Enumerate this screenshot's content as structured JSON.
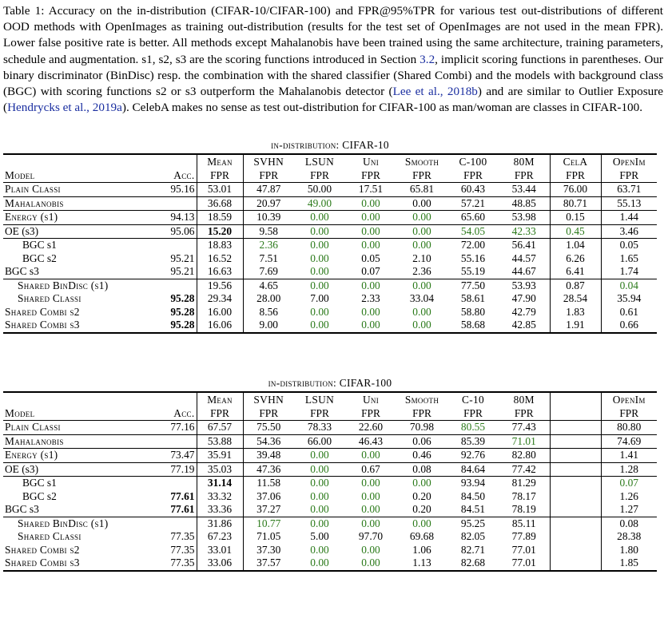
{
  "caption": {
    "part1": "Table 1: Accuracy on the in-distribution (CIFAR-10/CIFAR-100) and FPR@95%TPR for various test out-distributions of different OOD methods with OpenImages as training out-distribution (results for the test set of OpenImages are not used in the mean FPR). Lower false positive rate is better. All methods except Mahalanobis have been trained using the same architecture, training parameters, schedule and augmentation. s1, s2, s3 are the scoring functions introduced in Section ",
    "ref1": "3.2",
    "part2": ", implicit scoring functions in parentheses. Our binary discriminator (BinDisc) resp. the combination with the shared classifier (Shared Combi) and the models with background class (BGC) with scoring functions s2 or s3 outperform the Mahalanobis detector (",
    "ref2": "Lee et al., 2018b",
    "part3": ") and are similar to Outlier Exposure (",
    "ref3": "Hendrycks et al., 2019a",
    "part4": "). CelebA makes no sense as test out-distribution for CIFAR-100 as man/woman are classes in CIFAR-100."
  },
  "tables": [
    {
      "title": "in-distribution: CIFAR-10",
      "header_top": [
        "",
        "",
        "Mean",
        "SVHN",
        "LSUN",
        "Uni",
        "Smooth",
        "C-100",
        "80M",
        "CelA",
        "OpenIm"
      ],
      "header_bot": [
        "Model",
        "Acc.",
        "FPR",
        "FPR",
        "FPR",
        "FPR",
        "FPR",
        "FPR",
        "FPR",
        "FPR",
        "FPR"
      ],
      "rows": [
        [
          "Plain Classi",
          "95.16",
          "53.01",
          "47.87",
          "50.00",
          "17.51",
          "65.81",
          "60.43",
          "53.44",
          "76.00",
          "63.71"
        ],
        [
          "Mahalanobis",
          "",
          "36.68",
          "20.97",
          "49.00",
          "0.00",
          "0.00",
          "57.21",
          "48.85",
          "80.71",
          "55.13"
        ],
        [
          "Energy (s1)",
          "94.13",
          "18.59",
          "10.39",
          "0.00",
          "0.00",
          "0.00",
          "65.60",
          "53.98",
          "0.15",
          "1.44"
        ],
        [
          "OE (s3)",
          "95.06",
          "15.20",
          "9.58",
          "0.00",
          "0.00",
          "0.00",
          "54.05",
          "42.33",
          "0.45",
          "3.46"
        ],
        [
          "BGC s1",
          "",
          "18.83",
          "2.36",
          "0.00",
          "0.00",
          "0.00",
          "72.00",
          "56.41",
          "1.04",
          "0.05"
        ],
        [
          "BGC s2",
          "95.21",
          "16.52",
          "7.51",
          "0.00",
          "0.05",
          "2.10",
          "55.16",
          "44.57",
          "6.26",
          "1.65"
        ],
        [
          "BGC s3",
          "95.21",
          "16.63",
          "7.69",
          "0.00",
          "0.07",
          "2.36",
          "55.19",
          "44.67",
          "6.41",
          "1.74"
        ],
        [
          "Shared BinDisc (s1)",
          "",
          "19.56",
          "4.65",
          "0.00",
          "0.00",
          "0.00",
          "77.50",
          "53.93",
          "0.87",
          "0.04"
        ],
        [
          "Shared Classi",
          "95.28",
          "29.34",
          "28.00",
          "7.00",
          "2.33",
          "33.04",
          "58.61",
          "47.90",
          "28.54",
          "35.94"
        ],
        [
          "Shared Combi s2",
          "95.28",
          "16.00",
          "8.56",
          "0.00",
          "0.00",
          "0.00",
          "58.80",
          "42.79",
          "1.83",
          "0.61"
        ],
        [
          "Shared Combi s3",
          "95.28",
          "16.06",
          "9.00",
          "0.00",
          "0.00",
          "0.00",
          "58.68",
          "42.85",
          "1.91",
          "0.66"
        ]
      ]
    },
    {
      "title": "in-distribution: CIFAR-100",
      "header_top": [
        "",
        "",
        "Mean",
        "SVHN",
        "LSUN",
        "Uni",
        "Smooth",
        "C-10",
        "80M",
        "",
        "OpenIm"
      ],
      "header_bot": [
        "Model",
        "Acc.",
        "FPR",
        "FPR",
        "FPR",
        "FPR",
        "FPR",
        "FPR",
        "FPR",
        "",
        "FPR"
      ],
      "rows": [
        [
          "Plain Classi",
          "77.16",
          "67.57",
          "75.50",
          "78.33",
          "22.60",
          "70.98",
          "80.55",
          "77.43",
          "",
          "80.80"
        ],
        [
          "Mahalanobis",
          "",
          "53.88",
          "54.36",
          "66.00",
          "46.43",
          "0.06",
          "85.39",
          "71.01",
          "",
          "74.69"
        ],
        [
          "Energy (s1)",
          "73.47",
          "35.91",
          "39.48",
          "0.00",
          "0.00",
          "0.46",
          "92.76",
          "82.80",
          "",
          "1.41"
        ],
        [
          "OE (s3)",
          "77.19",
          "35.03",
          "47.36",
          "0.00",
          "0.67",
          "0.08",
          "84.64",
          "77.42",
          "",
          "1.28"
        ],
        [
          "BGC s1",
          "",
          "31.14",
          "11.58",
          "0.00",
          "0.00",
          "0.00",
          "93.94",
          "81.29",
          "",
          "0.07"
        ],
        [
          "BGC s2",
          "77.61",
          "33.32",
          "37.06",
          "0.00",
          "0.00",
          "0.20",
          "84.50",
          "78.17",
          "",
          "1.26"
        ],
        [
          "BGC s3",
          "77.61",
          "33.36",
          "37.27",
          "0.00",
          "0.00",
          "0.20",
          "84.51",
          "78.19",
          "",
          "1.27"
        ],
        [
          "Shared BinDisc (s1)",
          "",
          "31.86",
          "10.77",
          "0.00",
          "0.00",
          "0.00",
          "95.25",
          "85.11",
          "",
          "0.08"
        ],
        [
          "Shared Classi",
          "77.35",
          "67.23",
          "71.05",
          "5.00",
          "97.70",
          "69.68",
          "82.05",
          "77.89",
          "",
          "28.38"
        ],
        [
          "Shared Combi s2",
          "77.35",
          "33.01",
          "37.30",
          "0.00",
          "0.00",
          "1.06",
          "82.71",
          "77.01",
          "",
          "1.80"
        ],
        [
          "Shared Combi s3",
          "77.35",
          "33.06",
          "37.57",
          "0.00",
          "0.00",
          "1.13",
          "82.68",
          "77.01",
          "",
          "1.85"
        ]
      ]
    }
  ],
  "colors": {
    "best_green": "#2b7a1a",
    "link_blue": "#1a2ea0"
  }
}
